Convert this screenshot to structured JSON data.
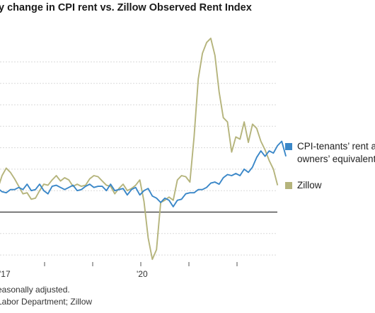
{
  "title": "ly change in CPI rent vs. Zillow Observed Rent Index",
  "notes": {
    "adjustment": "easonally adjusted.",
    "source": "Labor Department; Zillow"
  },
  "colors": {
    "cpi": "#3a87c8",
    "zillow": "#b5b47c",
    "grid": "#d9d9d9",
    "axis": "#333333"
  },
  "chart_data": {
    "type": "line",
    "title": "ly change in CPI rent vs. Zillow Observed Rent Index",
    "xlabel": "",
    "ylabel": "",
    "x_tick_labels": [
      "'17",
      "'20"
    ],
    "grid": true,
    "legend_position": "right",
    "ylim": [
      -2.0,
      8.0
    ],
    "gridlines_y": [
      -2,
      -1,
      0,
      1,
      2,
      3,
      4,
      5,
      6,
      7
    ],
    "baseline_y": 0,
    "x_start": "2017-01",
    "x_step": "month",
    "series": [
      {
        "name": "CPI-tenants’ rent and owners’ equivalent r",
        "legend_lines": [
          "CPI-tenants’ rent an",
          "owners’ equivalent r"
        ],
        "color": "#3a87c8",
        "values": [
          1.1,
          0.95,
          0.9,
          1.05,
          1.05,
          1.15,
          1.05,
          1.3,
          1.0,
          1.05,
          1.3,
          1.0,
          0.85,
          1.2,
          1.25,
          1.15,
          1.05,
          1.15,
          1.25,
          1.0,
          1.05,
          1.2,
          1.3,
          1.15,
          1.2,
          1.2,
          1.0,
          1.3,
          1.0,
          1.05,
          1.1,
          0.8,
          1.05,
          1.15,
          0.8,
          1.0,
          1.1,
          0.75,
          0.65,
          0.45,
          0.65,
          0.55,
          0.25,
          0.55,
          0.6,
          0.85,
          0.9,
          0.9,
          1.05,
          1.05,
          1.15,
          1.35,
          1.4,
          1.3,
          1.6,
          1.75,
          1.7,
          1.8,
          1.7,
          2.0,
          1.85,
          2.1,
          2.55,
          2.85,
          2.6,
          2.85,
          2.75,
          3.1,
          3.3,
          2.6
        ]
      },
      {
        "name": "Zillow",
        "legend_lines": [
          "Zillow"
        ],
        "color": "#b5b47c",
        "values": [
          1.1,
          1.7,
          2.05,
          1.85,
          1.55,
          1.2,
          0.85,
          0.9,
          0.6,
          0.65,
          1.0,
          1.3,
          1.25,
          1.5,
          1.7,
          1.45,
          1.6,
          1.5,
          1.2,
          1.3,
          1.2,
          1.25,
          1.55,
          1.7,
          1.65,
          1.45,
          1.25,
          1.2,
          0.85,
          1.1,
          1.3,
          1.0,
          1.1,
          1.25,
          1.5,
          0.5,
          -1.2,
          -2.2,
          -1.75,
          0.45,
          0.55,
          0.7,
          0.55,
          1.5,
          1.7,
          1.65,
          1.4,
          3.5,
          6.2,
          7.4,
          7.9,
          8.1,
          7.3,
          5.6,
          4.4,
          4.2,
          2.8,
          3.5,
          3.4,
          4.2,
          3.25,
          4.1,
          3.9,
          3.3,
          2.9,
          2.4,
          2.0,
          1.25
        ]
      }
    ]
  }
}
